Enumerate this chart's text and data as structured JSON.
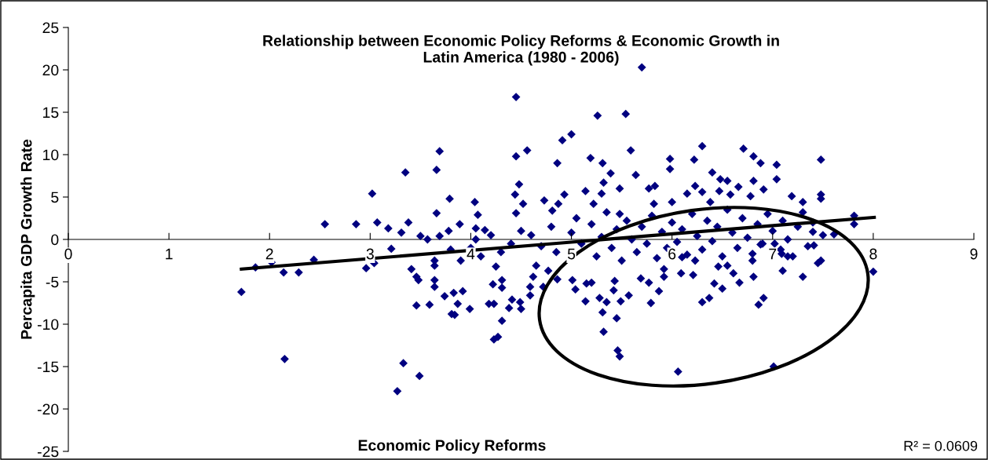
{
  "chart_data": {
    "type": "scatter",
    "title": "Relationship between Economic Policy Reforms & Economic Growth in\nLatin America (1980 - 2006)",
    "xlabel": "Economic Policy Reforms",
    "ylabel": "Percapita GDP Growth Rate",
    "xlim": [
      0,
      9
    ],
    "xticks": [
      0,
      1,
      2,
      3,
      4,
      5,
      6,
      7,
      8,
      9
    ],
    "ylim": [
      -25,
      25
    ],
    "yticks": [
      -25,
      -20,
      -15,
      -10,
      -5,
      0,
      5,
      10,
      15,
      20,
      25
    ],
    "grid": false,
    "legend": false,
    "marker": "diamond",
    "annotations": [
      "R² = 0.0609"
    ],
    "series": [
      {
        "color": "#000080",
        "x": [
          1.72,
          1.86,
          2.02,
          2.14,
          2.29,
          2.44,
          2.55,
          2.86,
          2.15,
          2.96,
          3.04,
          3.02,
          3.07,
          3.18,
          3.31,
          3.35,
          3.38,
          3.21,
          3.33,
          3.49,
          3.27,
          3.41,
          3.46,
          3.48,
          3.64,
          3.64,
          3.46,
          3.59,
          3.69,
          3.66,
          3.66,
          3.5,
          3.57,
          3.69,
          3.78,
          3.79,
          3.64,
          3.64,
          3.74,
          3.81,
          5.7,
          4.45,
          5.26,
          5.54,
          5.0,
          4.91,
          4.56,
          4.45,
          5.59,
          4.86,
          5.19,
          5.31,
          5.39,
          5.64,
          5.32,
          4.48,
          4.44,
          4.04,
          4.52,
          4.73,
          4.93,
          5.14,
          4.07,
          4.45,
          3.89,
          4.05,
          4.14,
          4.81,
          4.87,
          5.3,
          5.48,
          5.83,
          5.77,
          5.98,
          5.98,
          5.48,
          5.22,
          5.82,
          3.84,
          3.99,
          3.92,
          3.83,
          3.87,
          4.25,
          4.22,
          4.31,
          4.31,
          4.18,
          4.23,
          4.38,
          4.41,
          4.49,
          4.5,
          4.31,
          4.23,
          4.27,
          4.59,
          4.59,
          4.72,
          4.62,
          4.65,
          4.77,
          4.86,
          5.01,
          5.04,
          5.15,
          5.2,
          5.14,
          5.28,
          5.35,
          5.49,
          5.57,
          5.31,
          5.45,
          5.32,
          5.46,
          5.48,
          5.79,
          5.87,
          5.42,
          5.43,
          5.92,
          5.77,
          5.69,
          6.3,
          6.71,
          6.22,
          6.81,
          6.88,
          7.04,
          7.48,
          6.4,
          6.48,
          6.55,
          6.66,
          6.81,
          6.91,
          7.04,
          6.47,
          6.58,
          6.23,
          6.15,
          6.3,
          6.0,
          6.38,
          6.78,
          7.19,
          7.48,
          7.48,
          7.3,
          7.81,
          7.81,
          7.4,
          7.61,
          8.0,
          7.48,
          7.3,
          7.1,
          7.41,
          6.88,
          7.02,
          6.8,
          6.81,
          6.67,
          6.61,
          6.5,
          6.42,
          6.46,
          6.55,
          6.21,
          6.09,
          5.92,
          6.37,
          6.3,
          6.91,
          6.86,
          6.06,
          7.01,
          6.23,
          6.1,
          7.15,
          7.09,
          4.6,
          4.7,
          4.8,
          4.85,
          5.0,
          5.05,
          5.1,
          5.2,
          5.25,
          5.3,
          5.35,
          5.4,
          5.45,
          5.5,
          5.55,
          5.6,
          5.65,
          5.7,
          5.75,
          5.8,
          5.85,
          5.9,
          5.95,
          6.0,
          6.05,
          6.1,
          6.15,
          6.2,
          6.25,
          6.3,
          6.35,
          6.4,
          6.45,
          6.5,
          6.55,
          6.6,
          6.65,
          6.7,
          6.75,
          6.8,
          6.85,
          6.9,
          6.95,
          7.0,
          7.08,
          7.1,
          7.15,
          7.2,
          7.25,
          7.3,
          7.35,
          7.4,
          7.45,
          7.5,
          4.0,
          4.1,
          4.2,
          4.3,
          4.4,
          4.5,
          3.9,
          4.05,
          3.8
        ],
        "values": [
          -6.2,
          -3.3,
          -2.7,
          -3.9,
          -3.9,
          -2.4,
          1.8,
          1.8,
          -14.1,
          -3.4,
          -2.8,
          5.4,
          2.0,
          1.3,
          0.8,
          7.9,
          2.0,
          -1.1,
          -14.6,
          -16.1,
          -17.9,
          -3.5,
          -4.4,
          -4.8,
          -4.8,
          -5.6,
          -7.8,
          -7.7,
          10.4,
          8.2,
          3.1,
          0.4,
          0,
          0.4,
          1.0,
          4.8,
          -2.5,
          -3.1,
          -6.7,
          -8.8,
          20.3,
          16.8,
          14.6,
          14.8,
          12.4,
          11.7,
          10.5,
          9.8,
          10.5,
          9.0,
          9.6,
          9.0,
          7.8,
          7.6,
          6.7,
          6.5,
          5.3,
          4.4,
          4.2,
          4.6,
          5.3,
          5.7,
          2.9,
          3.1,
          1.8,
          1.3,
          1.1,
          3.4,
          4.2,
          5.4,
          6.0,
          6.3,
          6.0,
          9.5,
          8.3,
          3.0,
          4.2,
          4.2,
          -8.9,
          -8.2,
          -6.1,
          -6.3,
          -7.6,
          -3.2,
          -5.3,
          -5.7,
          -4.8,
          -7.6,
          -7.6,
          -8.1,
          -7.1,
          -7.4,
          -8.2,
          -9.6,
          -11.8,
          -11.5,
          -6.6,
          -5.6,
          -5.6,
          -4.4,
          -3.1,
          -3.7,
          -4.7,
          -4.8,
          -5.9,
          -5.2,
          -5.1,
          -7.3,
          -6.9,
          -7.4,
          -7.3,
          -6.6,
          -8.6,
          -9.3,
          -10.9,
          -13.1,
          -13.8,
          -7.5,
          -6.1,
          -6.0,
          -4.9,
          -3.5,
          -5.1,
          -4.6,
          11.0,
          10.7,
          9.4,
          9.8,
          9.0,
          8.8,
          9.4,
          7.9,
          7.1,
          6.9,
          6.2,
          6.9,
          5.9,
          7.1,
          5.7,
          5.3,
          6.3,
          5.4,
          5.6,
          4.4,
          4.4,
          5.1,
          5.1,
          5.3,
          4.8,
          4.4,
          2.8,
          1.8,
          0.9,
          0.6,
          -3.8,
          -2.5,
          -4.4,
          -3.7,
          -0.7,
          -0.6,
          -0.5,
          -1.7,
          -4.4,
          -5.1,
          -4.0,
          -5.8,
          -5.2,
          -3.2,
          -3.1,
          -4.2,
          -4.0,
          -4.4,
          -6.9,
          -7.4,
          -6.9,
          -7.7,
          -15.6,
          -15.0,
          -2.5,
          -2.1,
          -2.0,
          -1.7,
          0.5,
          -0.8,
          1.5,
          -1.5,
          0.8,
          2.5,
          -0.5,
          1.8,
          -2.0,
          0.3,
          3.2,
          -1.0,
          1.2,
          -2.5,
          2.2,
          0.0,
          -1.5,
          1.5,
          -0.5,
          2.8,
          -2.2,
          0.9,
          -1.0,
          2.0,
          -0.3,
          1.2,
          -1.8,
          3.0,
          0.4,
          -1.2,
          2.2,
          -0.2,
          1.5,
          -2.0,
          3.5,
          0.8,
          -1.0,
          2.5,
          0.2,
          -2.5,
          1.8,
          -0.5,
          3.0,
          1.0,
          -1.2,
          2.2,
          0.0,
          -2.0,
          1.5,
          3.2,
          -0.8,
          2.0,
          -2.8,
          0.5,
          -1.0,
          -2.0,
          0.5,
          -1.5,
          -0.5,
          1.0,
          -2.5,
          0.0,
          -1.2
        ]
      },
      {
        "type": "line",
        "marker": "none",
        "color": "#000000",
        "x": [
          1.72,
          8.01
        ],
        "values": [
          -3.5,
          2.6
        ]
      }
    ]
  }
}
